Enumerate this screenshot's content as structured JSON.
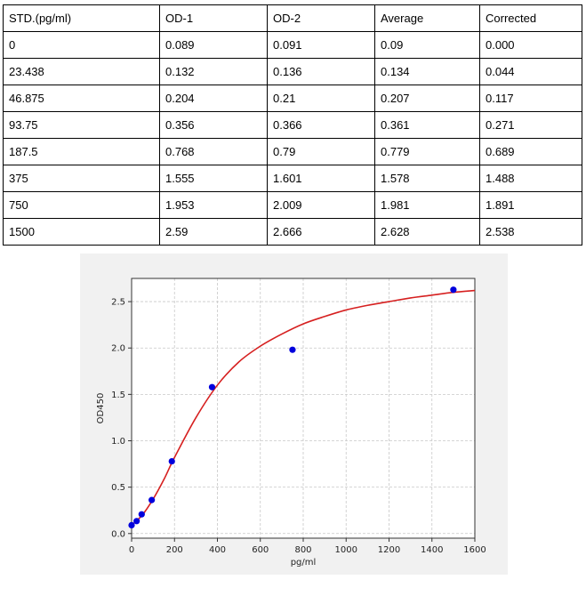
{
  "table": {
    "headers": [
      "STD.(pg/ml)",
      "OD-1",
      "OD-2",
      "Average",
      "Corrected"
    ],
    "rows": [
      [
        "0",
        "0.089",
        "0.091",
        "0.09",
        "0.000"
      ],
      [
        "23.438",
        "0.132",
        "0.136",
        "0.134",
        "0.044"
      ],
      [
        "46.875",
        "0.204",
        "0.21",
        "0.207",
        "0.117"
      ],
      [
        "93.75",
        "0.356",
        "0.366",
        "0.361",
        "0.271"
      ],
      [
        "187.5",
        "0.768",
        "0.79",
        "0.779",
        "0.689"
      ],
      [
        "375",
        "1.555",
        "1.601",
        "1.578",
        "1.488"
      ],
      [
        "750",
        "1.953",
        "2.009",
        "1.981",
        "1.891"
      ],
      [
        "1500",
        "2.59",
        "2.666",
        "2.628",
        "2.538"
      ]
    ]
  },
  "chart_data": {
    "type": "scatter",
    "title": "",
    "xlabel": "pg/ml",
    "ylabel": "OD450",
    "xlim": [
      0,
      1600
    ],
    "ylim": [
      -0.05,
      2.75
    ],
    "xticks": [
      0,
      200,
      400,
      600,
      800,
      1000,
      1200,
      1400,
      1600
    ],
    "yticks": [
      0.0,
      0.5,
      1.0,
      1.5,
      2.0,
      2.5
    ],
    "grid": true,
    "points": {
      "x": [
        0,
        23.438,
        46.875,
        93.75,
        187.5,
        375,
        750,
        1500
      ],
      "y": [
        0.09,
        0.134,
        0.207,
        0.361,
        0.779,
        1.578,
        1.981,
        2.628
      ],
      "color": "#0000dd"
    },
    "fit_curve": {
      "color": "#d62020",
      "x": [
        0,
        50,
        100,
        150,
        200,
        300,
        400,
        500,
        600,
        700,
        800,
        900,
        1000,
        1100,
        1200,
        1300,
        1400,
        1500,
        1600
      ],
      "y": [
        0.09,
        0.2,
        0.37,
        0.58,
        0.82,
        1.25,
        1.6,
        1.85,
        2.02,
        2.15,
        2.26,
        2.34,
        2.41,
        2.46,
        2.5,
        2.54,
        2.57,
        2.6,
        2.62
      ]
    }
  }
}
